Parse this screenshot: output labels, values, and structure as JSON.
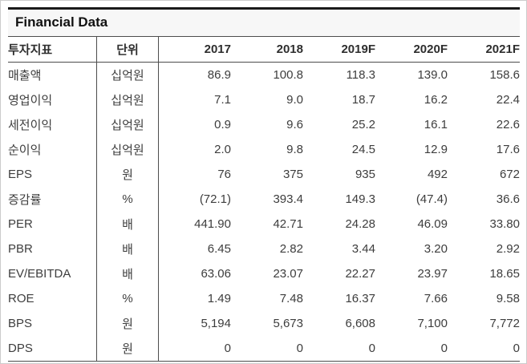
{
  "title": "Financial Data",
  "table": {
    "headers": [
      "투자지표",
      "단위",
      "2017",
      "2018",
      "2019F",
      "2020F",
      "2021F"
    ],
    "rows": [
      {
        "label": "매출액",
        "unit": "십억원",
        "values": [
          "86.9",
          "100.8",
          "118.3",
          "139.0",
          "158.6"
        ]
      },
      {
        "label": "영업이익",
        "unit": "십억원",
        "values": [
          "7.1",
          "9.0",
          "18.7",
          "16.2",
          "22.4"
        ]
      },
      {
        "label": "세전이익",
        "unit": "십억원",
        "values": [
          "0.9",
          "9.6",
          "25.2",
          "16.1",
          "22.6"
        ]
      },
      {
        "label": "순이익",
        "unit": "십억원",
        "values": [
          "2.0",
          "9.8",
          "24.5",
          "12.9",
          "17.6"
        ]
      },
      {
        "label": "EPS",
        "unit": "원",
        "values": [
          "76",
          "375",
          "935",
          "492",
          "672"
        ]
      },
      {
        "label": "증감률",
        "unit": "%",
        "values": [
          "(72.1)",
          "393.4",
          "149.3",
          "(47.4)",
          "36.6"
        ]
      },
      {
        "label": "PER",
        "unit": "배",
        "values": [
          "441.90",
          "42.71",
          "24.28",
          "46.09",
          "33.80"
        ]
      },
      {
        "label": "PBR",
        "unit": "배",
        "values": [
          "6.45",
          "2.82",
          "3.44",
          "3.20",
          "2.92"
        ]
      },
      {
        "label": "EV/EBITDA",
        "unit": "배",
        "values": [
          "63.06",
          "23.07",
          "22.27",
          "23.97",
          "18.65"
        ]
      },
      {
        "label": "ROE",
        "unit": "%",
        "values": [
          "1.49",
          "7.48",
          "16.37",
          "7.66",
          "9.58"
        ]
      },
      {
        "label": "BPS",
        "unit": "원",
        "values": [
          "5,194",
          "5,673",
          "6,608",
          "7,100",
          "7,772"
        ]
      },
      {
        "label": "DPS",
        "unit": "원",
        "values": [
          "0",
          "0",
          "0",
          "0",
          "0"
        ]
      }
    ]
  }
}
